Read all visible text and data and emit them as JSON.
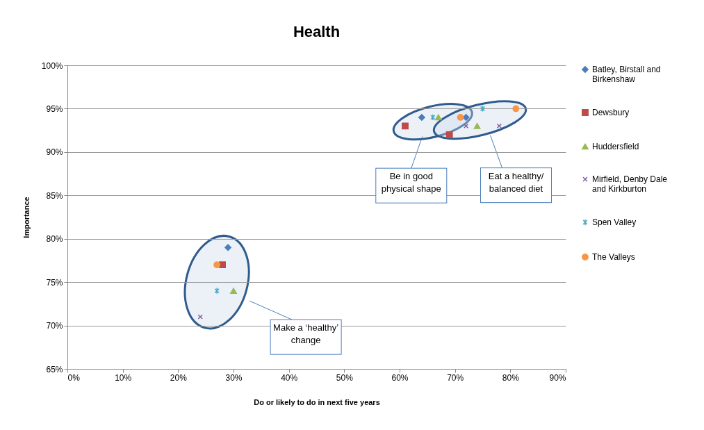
{
  "chart_data": {
    "type": "scatter",
    "title": "Health",
    "xlabel": "Do or likely to do in next five years",
    "ylabel": "Importance",
    "xlim": [
      0,
      90
    ],
    "xticks": [
      {
        "value": 0,
        "label": "0%"
      },
      {
        "value": 10,
        "label": "10%"
      },
      {
        "value": 20,
        "label": "20%"
      },
      {
        "value": 30,
        "label": "30%"
      },
      {
        "value": 40,
        "label": "40%"
      },
      {
        "value": 50,
        "label": "50%"
      },
      {
        "value": 60,
        "label": "60%"
      },
      {
        "value": 70,
        "label": "70%"
      },
      {
        "value": 80,
        "label": "80%"
      },
      {
        "value": 90,
        "label": "90%"
      }
    ],
    "ylim": [
      65,
      100
    ],
    "yticks": [
      {
        "value": 65,
        "label": "65%"
      },
      {
        "value": 70,
        "label": "70%"
      },
      {
        "value": 75,
        "label": "75%"
      },
      {
        "value": 80,
        "label": "80%"
      },
      {
        "value": 85,
        "label": "85%"
      },
      {
        "value": 90,
        "label": "90%"
      },
      {
        "value": 95,
        "label": "95%"
      },
      {
        "value": 100,
        "label": "100%"
      }
    ],
    "grid": "y",
    "legend": "right",
    "series": [
      {
        "name": "Batley, Birstall and Birkenshaw",
        "color": "#4a7ebb",
        "marker": "diamond",
        "x": [
          64,
          72,
          29
        ],
        "values": [
          94,
          94,
          79
        ]
      },
      {
        "name": "Dewsbury",
        "color": "#be4b48",
        "marker": "square",
        "x": [
          61,
          69,
          28
        ],
        "values": [
          93,
          92,
          77
        ]
      },
      {
        "name": "Huddersfield",
        "color": "#98b954",
        "marker": "triangle",
        "x": [
          67,
          74,
          30
        ],
        "values": [
          94,
          93,
          74
        ]
      },
      {
        "name": "Mirfield, Denby Dale and Kirkburton",
        "color": "#7d60a0",
        "marker": "cross",
        "x": [
          72,
          78,
          24
        ],
        "values": [
          93,
          93,
          71
        ]
      },
      {
        "name": "Spen Valley",
        "color": "#46aac5",
        "marker": "cross",
        "x": [
          66,
          75,
          27
        ],
        "values": [
          94,
          95,
          74
        ]
      },
      {
        "name": "The Valleys",
        "color": "#f79646",
        "marker": "circle",
        "x": [
          71,
          81,
          27
        ],
        "values": [
          94,
          95,
          77
        ]
      }
    ],
    "annotations": [
      "Be in good physical shape",
      "Eat a healthy/ balanced diet",
      "Make a ‘healthy’ change"
    ]
  }
}
